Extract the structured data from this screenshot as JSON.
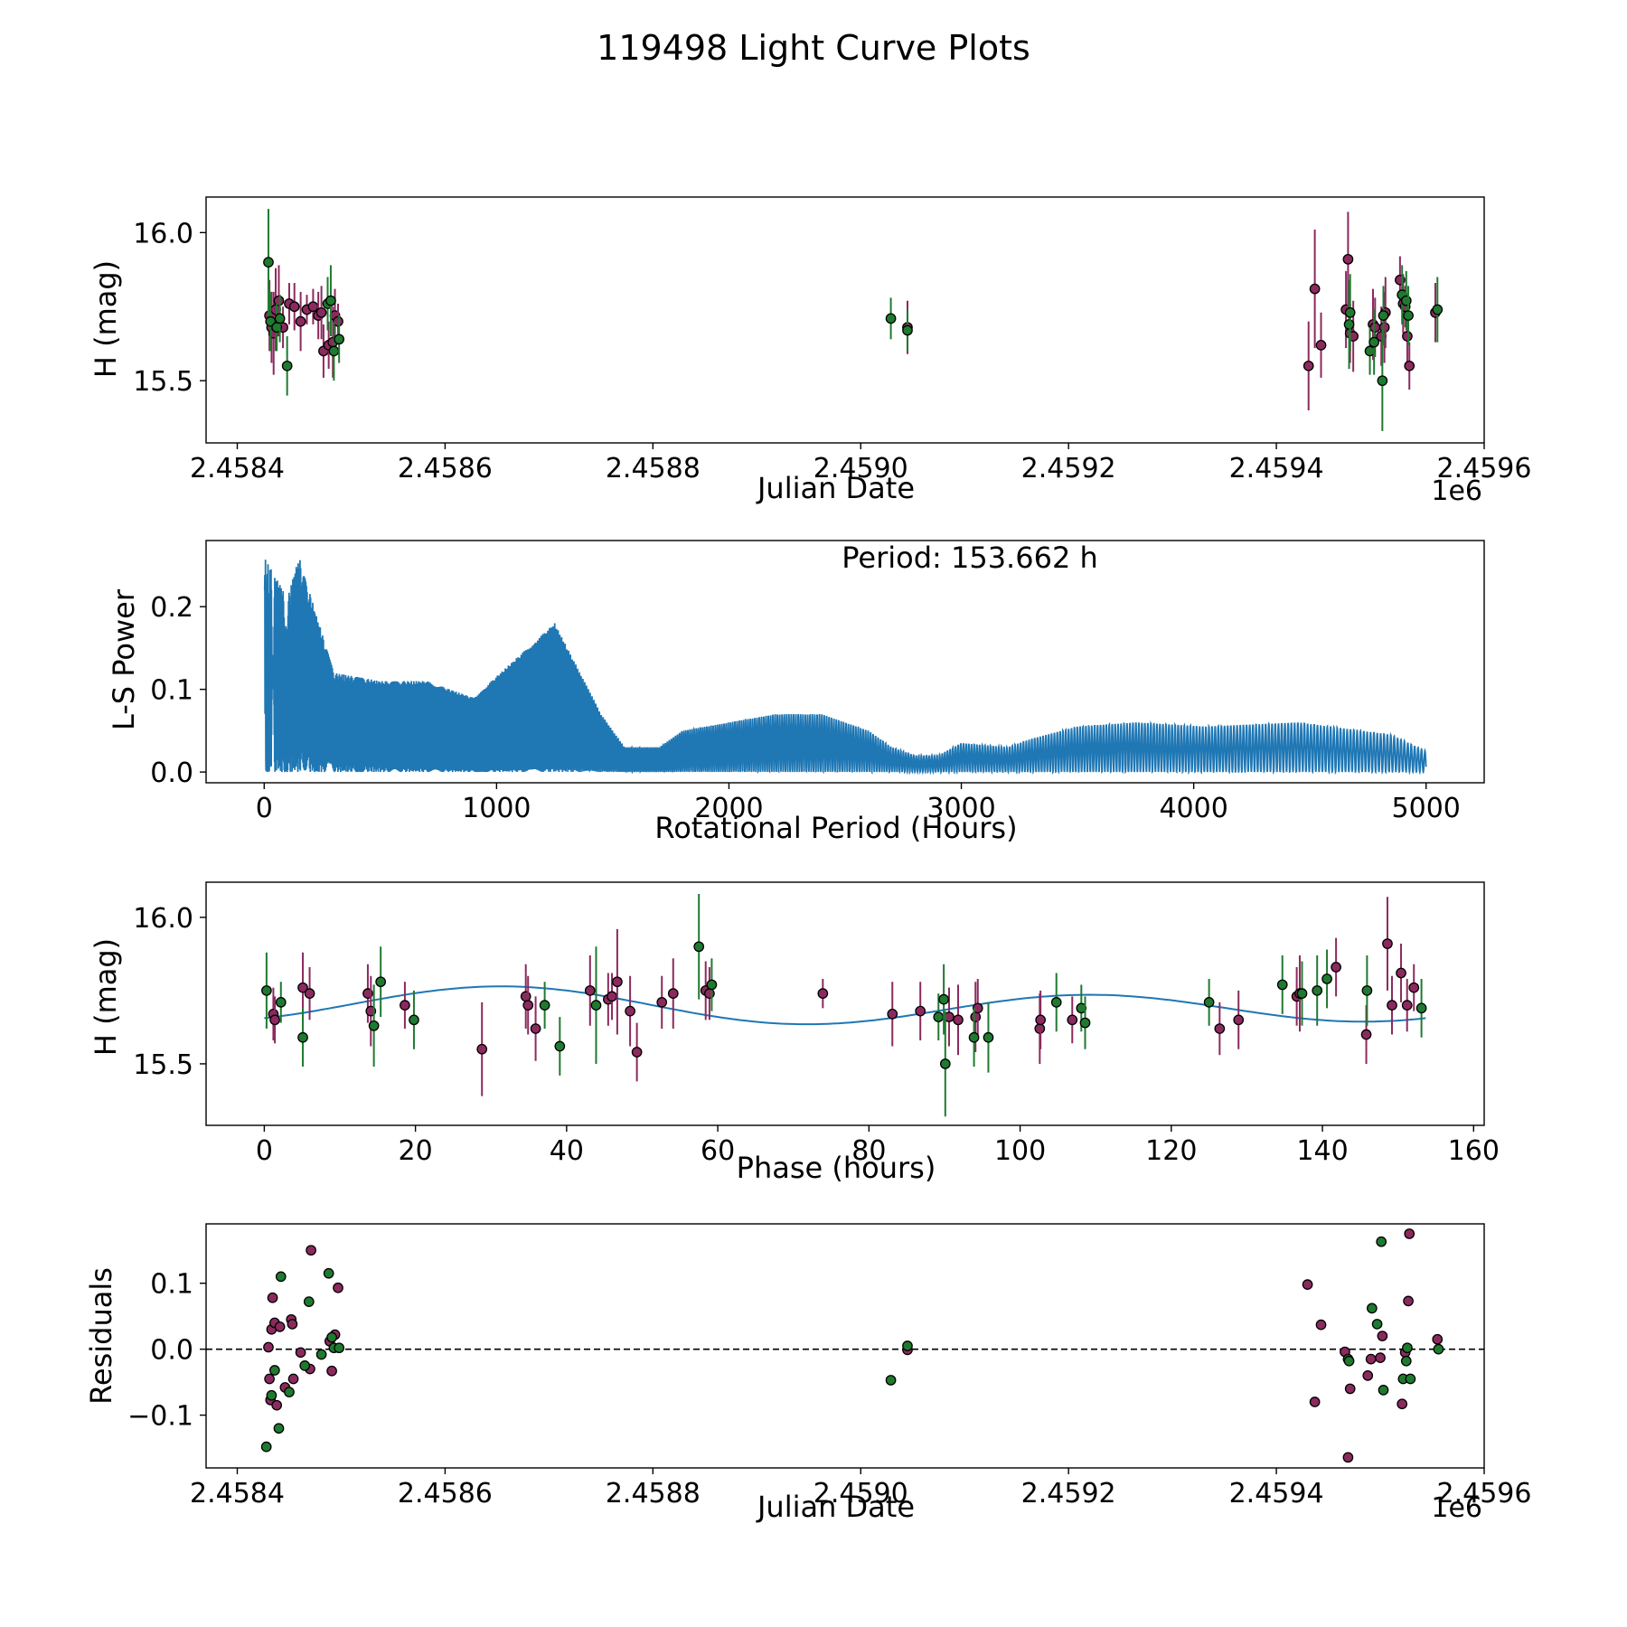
{
  "title": "119498 Light Curve Plots",
  "colors": {
    "magenta": "#8b2a5e",
    "green": "#1f7a30",
    "line": "#1f77b4"
  },
  "chart_data": [
    {
      "id": "lightcurve",
      "type": "scatter",
      "xlabel": "Julian Date",
      "ylabel": "H (mag)",
      "x_offset_label": "1e6",
      "xlim": [
        2.45837,
        2.4596
      ],
      "ylim": [
        15.29,
        16.12
      ],
      "xticks": [
        2.4584,
        2.4586,
        2.4588,
        2.459,
        2.4592,
        2.4594,
        2.4596
      ],
      "xtick_labels": [
        "2.4584",
        "2.4586",
        "2.4588",
        "2.4590",
        "2.4592",
        "2.4594",
        "2.4596"
      ],
      "yticks": [
        15.5,
        16.0
      ],
      "ytick_labels": [
        "15.5",
        "16.0"
      ],
      "series": [
        {
          "name": "magenta",
          "x": [
            2.458431,
            2.458433,
            2.458435,
            2.458437,
            2.45844,
            2.458444,
            2.45845,
            2.458455,
            2.458461,
            2.458467,
            2.458473,
            2.458478,
            2.458481,
            2.458483,
            2.458488,
            2.458492,
            2.458494,
            2.458497,
            2.459045,
            2.459431,
            2.459437,
            2.459443,
            2.459467,
            2.459469,
            2.459471,
            2.459474,
            2.459493,
            2.459495,
            2.459501,
            2.459504,
            2.459505,
            2.459519,
            2.459522,
            2.459524,
            2.459526,
            2.459528,
            2.459553
          ],
          "y": [
            15.72,
            15.68,
            15.66,
            15.74,
            15.77,
            15.68,
            15.76,
            15.75,
            15.7,
            15.74,
            15.75,
            15.72,
            15.73,
            15.6,
            15.62,
            15.63,
            15.72,
            15.7,
            15.68,
            15.55,
            15.81,
            15.62,
            15.74,
            15.91,
            15.66,
            15.65,
            15.69,
            15.68,
            15.65,
            15.68,
            15.73,
            15.84,
            15.76,
            15.75,
            15.65,
            15.55,
            15.73
          ],
          "yerr": [
            0.12,
            0.12,
            0.14,
            0.14,
            0.12,
            0.07,
            0.07,
            0.08,
            0.1,
            0.05,
            0.06,
            0.08,
            0.09,
            0.09,
            0.08,
            0.12,
            0.09,
            0.06,
            0.09,
            0.15,
            0.2,
            0.11,
            0.13,
            0.16,
            0.1,
            0.12,
            0.12,
            0.1,
            0.1,
            0.12,
            0.12,
            0.08,
            0.1,
            0.07,
            0.1,
            0.08,
            0.1
          ]
        },
        {
          "name": "green",
          "x": [
            2.45843,
            2.458432,
            2.458438,
            2.458441,
            2.458448,
            2.458487,
            2.45849,
            2.458493,
            2.458498,
            2.459029,
            2.459045,
            2.45947,
            2.459471,
            2.45949,
            2.459494,
            2.459502,
            2.459503,
            2.459521,
            2.459525,
            2.459527,
            2.459555
          ],
          "y": [
            15.9,
            15.7,
            15.68,
            15.71,
            15.55,
            15.76,
            15.77,
            15.6,
            15.64,
            15.71,
            15.67,
            15.69,
            15.73,
            15.6,
            15.63,
            15.5,
            15.72,
            15.79,
            15.77,
            15.72,
            15.74
          ],
          "yerr": [
            0.18,
            0.1,
            0.08,
            0.08,
            0.1,
            0.09,
            0.12,
            0.1,
            0.08,
            0.07,
            0.07,
            0.15,
            0.13,
            0.08,
            0.11,
            0.17,
            0.1,
            0.1,
            0.1,
            0.1,
            0.11
          ]
        }
      ]
    },
    {
      "id": "periodogram",
      "type": "line",
      "xlabel": "Rotational Period (Hours)",
      "ylabel": "L-S Power",
      "annotation": "Period: 153.662 h",
      "xlim": [
        -250,
        5250
      ],
      "ylim": [
        -0.013,
        0.28
      ],
      "xticks": [
        0,
        1000,
        2000,
        3000,
        4000,
        5000
      ],
      "xtick_labels": [
        "0",
        "1000",
        "2000",
        "3000",
        "4000",
        "5000"
      ],
      "yticks": [
        0.0,
        0.1,
        0.2
      ],
      "ytick_labels": [
        "0.0",
        "0.1",
        "0.2"
      ],
      "envelope_x": [
        0,
        100,
        150,
        300,
        500,
        700,
        900,
        1250,
        1450,
        1550,
        1700,
        1800,
        2000,
        2200,
        2400,
        2600,
        2700,
        2800,
        2900,
        3000,
        3200,
        3300,
        3500,
        3750,
        4050,
        4450,
        4850,
        5000
      ],
      "envelope_y": [
        0.26,
        0.21,
        0.26,
        0.12,
        0.11,
        0.11,
        0.09,
        0.18,
        0.07,
        0.03,
        0.03,
        0.05,
        0.06,
        0.07,
        0.07,
        0.05,
        0.03,
        0.02,
        0.02,
        0.035,
        0.03,
        0.04,
        0.055,
        0.06,
        0.055,
        0.06,
        0.045,
        0.025
      ],
      "period_x": [
        2,
        4,
        6,
        8,
        12,
        20,
        30,
        45,
        60,
        80,
        100,
        130,
        160,
        200,
        250,
        320,
        390,
        470,
        540,
        610,
        660,
        700,
        760,
        830,
        900,
        960,
        1020,
        1090,
        1150,
        1200,
        1250,
        1300,
        1350,
        1400,
        1460,
        1510,
        1560,
        1620,
        1680,
        1740,
        1800,
        1850,
        1900,
        1960,
        2030,
        2090,
        2160,
        2230,
        2300,
        2380,
        2470,
        2560,
        2640,
        2720,
        2800,
        2900,
        2990,
        3060,
        3160,
        3270,
        3380,
        3500,
        3620,
        3760,
        3900,
        4070,
        4250,
        4430,
        4650,
        4870
      ],
      "period_note": "sampled oscillation centres"
    },
    {
      "id": "phased",
      "type": "scatter",
      "xlabel": "Phase (hours)",
      "ylabel": "H (mag)",
      "xlim": [
        -7.7,
        161.4
      ],
      "ylim": [
        15.29,
        16.12
      ],
      "xticks": [
        0,
        20,
        40,
        60,
        80,
        100,
        120,
        140,
        160
      ],
      "xtick_labels": [
        "0",
        "20",
        "40",
        "60",
        "80",
        "100",
        "120",
        "140",
        "160"
      ],
      "yticks": [
        15.5,
        16.0
      ],
      "ytick_labels": [
        "15.5",
        "16.0"
      ],
      "fit": {
        "mean": 15.695,
        "amp1": 0.04,
        "amp2": 0.035,
        "period": 153.662
      },
      "series": [
        {
          "name": "magenta",
          "x": [
            1.2,
            1.4,
            5.1,
            6.0,
            13.7,
            14.1,
            18.6,
            28.8,
            34.6,
            34.9,
            35.9,
            43.1,
            45.5,
            46.0,
            46.7,
            48.4,
            49.3,
            52.6,
            54.1,
            58.4,
            58.9,
            73.9,
            83.1,
            86.8,
            90.6,
            91.8,
            94.1,
            94.4,
            102.6,
            102.7,
            106.9,
            126.4,
            128.9,
            136.6,
            137.0,
            141.8,
            145.8,
            148.6,
            149.2,
            150.4,
            151.2,
            152.1
          ],
          "y": [
            15.67,
            15.65,
            15.76,
            15.74,
            15.74,
            15.68,
            15.7,
            15.55,
            15.73,
            15.7,
            15.62,
            15.75,
            15.72,
            15.73,
            15.78,
            15.68,
            15.54,
            15.71,
            15.74,
            15.75,
            15.74,
            15.74,
            15.67,
            15.68,
            15.66,
            15.65,
            15.66,
            15.69,
            15.62,
            15.65,
            15.65,
            15.62,
            15.65,
            15.73,
            15.74,
            15.83,
            15.6,
            15.91,
            15.7,
            15.81,
            15.7,
            15.76
          ],
          "yerr": [
            0.09,
            0.08,
            0.12,
            0.09,
            0.1,
            0.12,
            0.08,
            0.16,
            0.11,
            0.1,
            0.11,
            0.12,
            0.09,
            0.08,
            0.18,
            0.12,
            0.1,
            0.09,
            0.12,
            0.1,
            0.09,
            0.05,
            0.11,
            0.1,
            0.1,
            0.12,
            0.12,
            0.1,
            0.12,
            0.1,
            0.08,
            0.09,
            0.1,
            0.1,
            0.13,
            0.1,
            0.1,
            0.16,
            0.1,
            0.1,
            0.09,
            0.08
          ]
        },
        {
          "name": "green",
          "x": [
            0.3,
            2.2,
            5.1,
            14.5,
            15.4,
            19.8,
            37.1,
            39.1,
            43.9,
            57.5,
            59.2,
            89.2,
            89.9,
            90.1,
            93.9,
            95.8,
            104.8,
            108.1,
            108.6,
            125.0,
            134.7,
            137.3,
            139.3,
            140.6,
            145.9,
            153.1
          ],
          "y": [
            15.75,
            15.71,
            15.59,
            15.63,
            15.78,
            15.65,
            15.7,
            15.56,
            15.7,
            15.9,
            15.77,
            15.66,
            15.72,
            15.5,
            15.59,
            15.59,
            15.71,
            15.69,
            15.64,
            15.71,
            15.77,
            15.74,
            15.75,
            15.79,
            15.75,
            15.69
          ],
          "yerr": [
            0.13,
            0.07,
            0.1,
            0.14,
            0.12,
            0.1,
            0.08,
            0.1,
            0.2,
            0.18,
            0.09,
            0.08,
            0.12,
            0.18,
            0.1,
            0.12,
            0.1,
            0.08,
            0.09,
            0.08,
            0.1,
            0.11,
            0.12,
            0.1,
            0.12,
            0.1
          ]
        }
      ]
    },
    {
      "id": "residuals",
      "type": "scatter",
      "xlabel": "Julian Date",
      "ylabel": "Residuals",
      "x_offset_label": "1e6",
      "xlim": [
        2.45837,
        2.4596
      ],
      "ylim": [
        -0.18,
        0.19
      ],
      "xticks": [
        2.4584,
        2.4586,
        2.4588,
        2.459,
        2.4592,
        2.4594,
        2.4596
      ],
      "xtick_labels": [
        "2.4584",
        "2.4586",
        "2.4588",
        "2.4590",
        "2.4592",
        "2.4594",
        "2.4596"
      ],
      "yticks": [
        -0.1,
        0.0,
        0.1
      ],
      "ytick_labels": [
        "−0.1",
        "0.0",
        "0.1"
      ],
      "reference_line": 0.0,
      "series": [
        {
          "name": "magenta",
          "x": [
            2.45843,
            2.458431,
            2.458432,
            2.458433,
            2.458434,
            2.458436,
            2.458438,
            2.458441,
            2.458446,
            2.458452,
            2.458453,
            2.458454,
            2.458461,
            2.45847,
            2.458471,
            2.458489,
            2.458491,
            2.458494,
            2.458497,
            2.459045,
            2.45943,
            2.459437,
            2.459443,
            2.459466,
            2.459469,
            2.459471,
            2.459488,
            2.459491,
            2.4595,
            2.459502,
            2.459521,
            2.459524,
            2.459527,
            2.459528,
            2.459555
          ],
          "y": [
            0.003,
            -0.045,
            -0.077,
            0.03,
            0.078,
            0.04,
            -0.085,
            0.034,
            -0.058,
            0.045,
            0.038,
            -0.045,
            -0.005,
            -0.03,
            0.15,
            0.012,
            -0.033,
            0.022,
            0.093,
            -0.001,
            0.098,
            -0.08,
            0.037,
            -0.004,
            -0.164,
            -0.06,
            -0.04,
            -0.015,
            -0.013,
            0.02,
            -0.083,
            -0.005,
            0.073,
            0.175,
            0.015
          ],
          "yerr": []
        },
        {
          "name": "green",
          "x": [
            2.458428,
            2.458433,
            2.458436,
            2.45844,
            2.458442,
            2.45845,
            2.458465,
            2.458469,
            2.458481,
            2.458488,
            2.458491,
            2.458493,
            2.458498,
            2.459029,
            2.459045,
            2.459469,
            2.45947,
            2.459492,
            2.459497,
            2.459501,
            2.459503,
            2.459522,
            2.459525,
            2.459526,
            2.459529,
            2.459556
          ],
          "y": [
            -0.148,
            -0.07,
            -0.032,
            -0.12,
            0.11,
            -0.065,
            -0.025,
            0.072,
            -0.008,
            0.115,
            0.018,
            0.002,
            0.002,
            -0.047,
            0.005,
            -0.015,
            -0.018,
            0.062,
            0.038,
            0.163,
            -0.062,
            -0.045,
            -0.018,
            0.002,
            -0.045,
            0.0
          ],
          "yerr": []
        }
      ]
    }
  ]
}
